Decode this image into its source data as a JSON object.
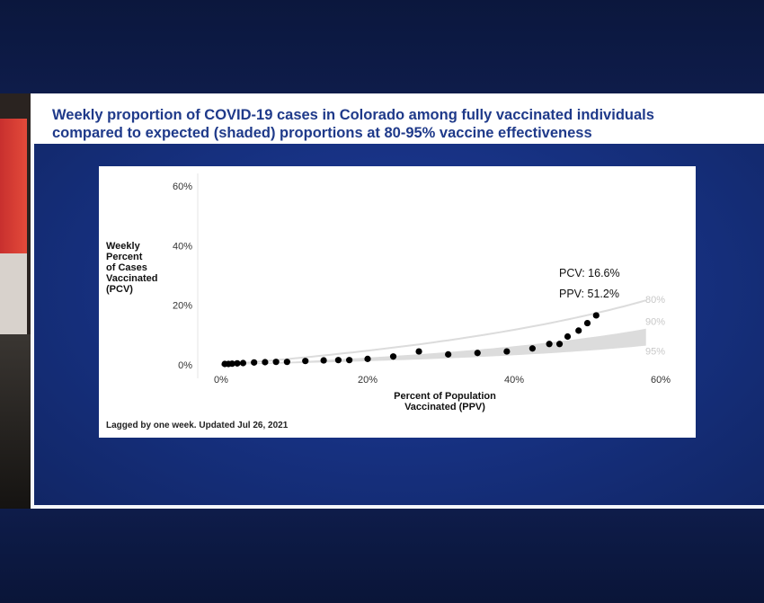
{
  "slide": {
    "title_line1": "Weekly proportion of COVID-19 cases in Colorado among fully vaccinated individuals",
    "title_line2": "compared to expected (shaded) proportions at 80-95% vaccine effectiveness",
    "title_color": "#1f3a8a",
    "footnote": "Lagged by one week. Updated Jul 26, 2021"
  },
  "chart_data": {
    "type": "scatter",
    "title": "",
    "xlabel_lines": [
      "Percent of Population",
      "Vaccinated (PPV)"
    ],
    "ylabel_lines": [
      "Weekly",
      "Percent",
      "of Cases",
      "Vaccinated",
      "(PCV)"
    ],
    "xlim": [
      0,
      60
    ],
    "ylim": [
      0,
      60
    ],
    "x_ticks": [
      0,
      20,
      40,
      60
    ],
    "y_ticks": [
      0,
      20,
      40,
      60
    ],
    "x_tick_labels": [
      "0%",
      "20%",
      "40%",
      "60%"
    ],
    "y_tick_labels": [
      "0%",
      "20%",
      "40%",
      "60%"
    ],
    "grid": false,
    "points": [
      {
        "x": 0.5,
        "y": 0.3
      },
      {
        "x": 1.0,
        "y": 0.3
      },
      {
        "x": 1.5,
        "y": 0.4
      },
      {
        "x": 2.2,
        "y": 0.5
      },
      {
        "x": 3.0,
        "y": 0.6
      },
      {
        "x": 4.5,
        "y": 0.8
      },
      {
        "x": 6.0,
        "y": 0.9
      },
      {
        "x": 7.5,
        "y": 1.0
      },
      {
        "x": 9.0,
        "y": 1.0
      },
      {
        "x": 11.5,
        "y": 1.3
      },
      {
        "x": 14.0,
        "y": 1.5
      },
      {
        "x": 16.0,
        "y": 1.6
      },
      {
        "x": 17.5,
        "y": 1.6
      },
      {
        "x": 20.0,
        "y": 2.0
      },
      {
        "x": 23.5,
        "y": 2.8
      },
      {
        "x": 27.0,
        "y": 4.5
      },
      {
        "x": 31.0,
        "y": 3.5
      },
      {
        "x": 35.0,
        "y": 4.0
      },
      {
        "x": 39.0,
        "y": 4.5
      },
      {
        "x": 42.5,
        "y": 5.5
      },
      {
        "x": 44.8,
        "y": 7.0
      },
      {
        "x": 46.2,
        "y": 7.0
      },
      {
        "x": 47.3,
        "y": 9.5
      },
      {
        "x": 48.8,
        "y": 11.5
      },
      {
        "x": 50.0,
        "y": 14.0
      },
      {
        "x": 51.2,
        "y": 16.6
      }
    ],
    "annotations": {
      "pcv": "PCV: 16.6%",
      "ppv": "PPV: 51.2%"
    },
    "effectiveness_labels": [
      "80%",
      "90%",
      "95%"
    ],
    "effectiveness_levels": [
      0.8,
      0.9,
      0.95
    ],
    "effectiveness_line_color": "#dcdcdc",
    "shaded_color": "#dcdcdc",
    "point_color": "#000000"
  }
}
